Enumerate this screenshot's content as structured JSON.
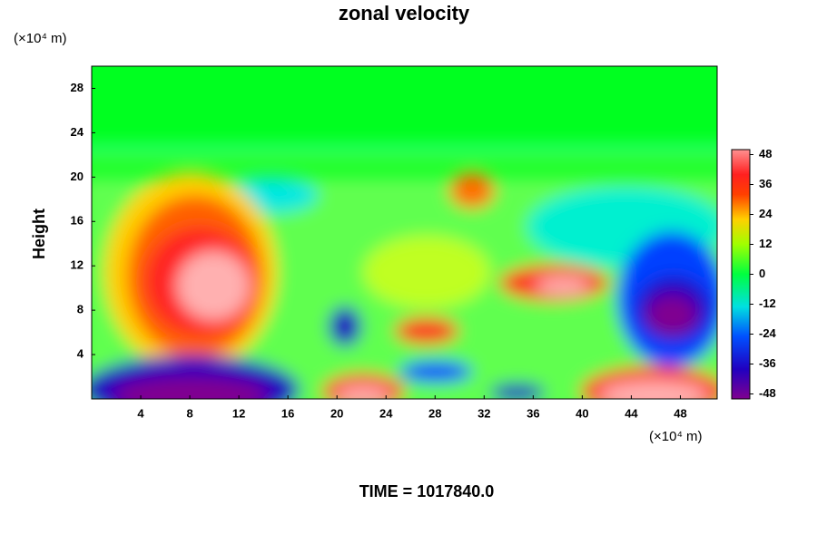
{
  "chart_data": {
    "type": "contour",
    "title": "zonal velocity",
    "ylabel": "Height",
    "xunit": "(×10⁴ m)",
    "yunit": "(×10⁴ m)",
    "xlim": [
      0,
      51
    ],
    "xticks": [
      4,
      8,
      12,
      16,
      20,
      24,
      28,
      32,
      36,
      40,
      44,
      48
    ],
    "ylim": [
      0,
      30
    ],
    "yticks": [
      4,
      8,
      12,
      16,
      20,
      24,
      28
    ],
    "clim": [
      -50,
      50
    ],
    "cticks": [
      -48,
      -36,
      -24,
      -12,
      0,
      12,
      24,
      36,
      48
    ],
    "time_label": "TIME = 1017840.0"
  }
}
